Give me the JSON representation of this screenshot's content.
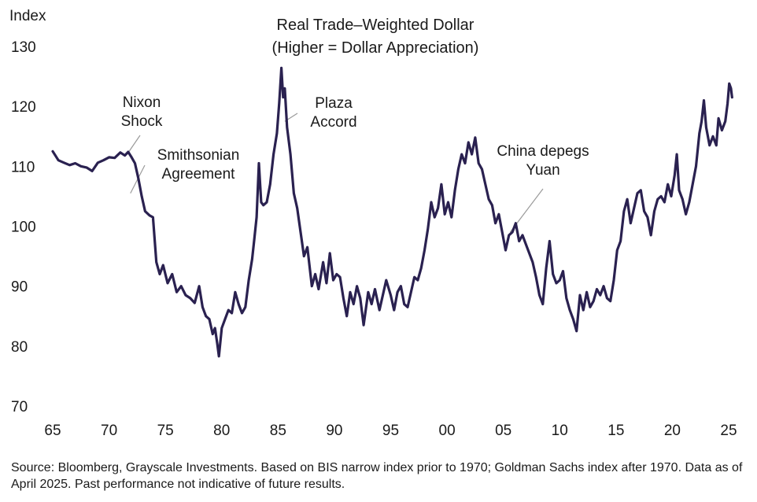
{
  "chart_data": {
    "type": "line",
    "title": "Real Trade–Weighted Dollar",
    "subtitle": "(Higher = Dollar Appreciation)",
    "ylabel": "Index",
    "xlabel": "",
    "ylim": [
      70,
      130
    ],
    "xlim": [
      1965,
      2025.3
    ],
    "yticks": [
      70,
      80,
      90,
      100,
      110,
      120,
      130
    ],
    "xticks": [
      {
        "value": 1965,
        "label": "65"
      },
      {
        "value": 1970,
        "label": "70"
      },
      {
        "value": 1975,
        "label": "75"
      },
      {
        "value": 1980,
        "label": "80"
      },
      {
        "value": 1985,
        "label": "85"
      },
      {
        "value": 1990,
        "label": "90"
      },
      {
        "value": 1995,
        "label": "95"
      },
      {
        "value": 2000,
        "label": "00"
      },
      {
        "value": 2005,
        "label": "05"
      },
      {
        "value": 2010,
        "label": "10"
      },
      {
        "value": 2015,
        "label": "15"
      },
      {
        "value": 2020,
        "label": "20"
      },
      {
        "value": 2025,
        "label": "25"
      }
    ],
    "grid": false,
    "line_color": "#2a2150",
    "series": [
      {
        "points": [
          [
            1965.0,
            112.5
          ],
          [
            1965.5,
            111.0
          ],
          [
            1966.0,
            110.6
          ],
          [
            1966.5,
            110.2
          ],
          [
            1967.0,
            110.5
          ],
          [
            1967.5,
            110.0
          ],
          [
            1968.0,
            109.8
          ],
          [
            1968.5,
            109.2
          ],
          [
            1969.0,
            110.6
          ],
          [
            1969.5,
            111.0
          ],
          [
            1970.0,
            111.5
          ],
          [
            1970.5,
            111.4
          ],
          [
            1971.0,
            112.3
          ],
          [
            1971.4,
            111.8
          ],
          [
            1971.7,
            112.4
          ],
          [
            1972.0,
            111.5
          ],
          [
            1972.3,
            110.5
          ],
          [
            1972.6,
            108.0
          ],
          [
            1972.9,
            105.0
          ],
          [
            1973.2,
            102.5
          ],
          [
            1973.6,
            101.8
          ],
          [
            1973.9,
            101.5
          ],
          [
            1974.2,
            94.0
          ],
          [
            1974.5,
            92.0
          ],
          [
            1974.8,
            93.5
          ],
          [
            1975.2,
            90.5
          ],
          [
            1975.6,
            92.0
          ],
          [
            1976.0,
            89.0
          ],
          [
            1976.4,
            90.0
          ],
          [
            1976.8,
            88.5
          ],
          [
            1977.2,
            88.0
          ],
          [
            1977.6,
            87.2
          ],
          [
            1978.0,
            90.0
          ],
          [
            1978.3,
            86.5
          ],
          [
            1978.6,
            85.0
          ],
          [
            1978.9,
            84.5
          ],
          [
            1979.2,
            82.0
          ],
          [
            1979.4,
            83.0
          ],
          [
            1979.6,
            80.5
          ],
          [
            1979.75,
            78.3
          ],
          [
            1980.0,
            83.0
          ],
          [
            1980.3,
            84.5
          ],
          [
            1980.6,
            86.0
          ],
          [
            1980.9,
            85.5
          ],
          [
            1981.2,
            89.0
          ],
          [
            1981.5,
            87.0
          ],
          [
            1981.8,
            85.5
          ],
          [
            1982.1,
            86.5
          ],
          [
            1982.4,
            91.0
          ],
          [
            1982.7,
            94.5
          ],
          [
            1982.9,
            98.0
          ],
          [
            1983.1,
            101.5
          ],
          [
            1983.3,
            110.5
          ],
          [
            1983.5,
            104.0
          ],
          [
            1983.7,
            103.5
          ],
          [
            1984.0,
            104.0
          ],
          [
            1984.3,
            107.0
          ],
          [
            1984.6,
            112.0
          ],
          [
            1984.9,
            115.5
          ],
          [
            1985.1,
            120.5
          ],
          [
            1985.3,
            126.4
          ],
          [
            1985.45,
            121.5
          ],
          [
            1985.6,
            123.0
          ],
          [
            1985.8,
            116.5
          ],
          [
            1986.1,
            112.0
          ],
          [
            1986.4,
            105.5
          ],
          [
            1986.7,
            103.0
          ],
          [
            1987.0,
            99.0
          ],
          [
            1987.3,
            95.0
          ],
          [
            1987.6,
            96.5
          ],
          [
            1988.0,
            90.0
          ],
          [
            1988.3,
            92.0
          ],
          [
            1988.6,
            89.5
          ],
          [
            1989.0,
            94.0
          ],
          [
            1989.3,
            90.5
          ],
          [
            1989.6,
            95.5
          ],
          [
            1989.9,
            91.0
          ],
          [
            1990.2,
            92.0
          ],
          [
            1990.5,
            91.5
          ],
          [
            1990.8,
            88.0
          ],
          [
            1991.1,
            85.0
          ],
          [
            1991.4,
            89.0
          ],
          [
            1991.7,
            87.0
          ],
          [
            1992.0,
            90.0
          ],
          [
            1992.3,
            88.0
          ],
          [
            1992.6,
            83.5
          ],
          [
            1993.0,
            89.0
          ],
          [
            1993.3,
            87.0
          ],
          [
            1993.6,
            89.5
          ],
          [
            1994.0,
            86.0
          ],
          [
            1994.3,
            88.5
          ],
          [
            1994.6,
            91.0
          ],
          [
            1995.0,
            88.5
          ],
          [
            1995.3,
            86.0
          ],
          [
            1995.6,
            89.0
          ],
          [
            1995.9,
            90.0
          ],
          [
            1996.2,
            87.0
          ],
          [
            1996.5,
            86.5
          ],
          [
            1996.8,
            89.0
          ],
          [
            1997.1,
            91.5
          ],
          [
            1997.4,
            91.0
          ],
          [
            1997.7,
            93.0
          ],
          [
            1998.0,
            96.0
          ],
          [
            1998.3,
            99.5
          ],
          [
            1998.6,
            104.0
          ],
          [
            1998.9,
            101.5
          ],
          [
            1999.2,
            103.0
          ],
          [
            1999.5,
            107.0
          ],
          [
            1999.8,
            102.0
          ],
          [
            2000.1,
            104.0
          ],
          [
            2000.4,
            101.5
          ],
          [
            2000.7,
            106.0
          ],
          [
            2001.0,
            109.5
          ],
          [
            2001.3,
            112.0
          ],
          [
            2001.6,
            110.5
          ],
          [
            2001.9,
            114.0
          ],
          [
            2002.2,
            112.0
          ],
          [
            2002.5,
            114.8
          ],
          [
            2002.8,
            110.5
          ],
          [
            2003.1,
            109.5
          ],
          [
            2003.4,
            107.0
          ],
          [
            2003.7,
            104.5
          ],
          [
            2004.0,
            103.5
          ],
          [
            2004.3,
            100.5
          ],
          [
            2004.6,
            102.0
          ],
          [
            2004.9,
            99.0
          ],
          [
            2005.2,
            96.0
          ],
          [
            2005.5,
            98.5
          ],
          [
            2005.8,
            99.0
          ],
          [
            2006.1,
            100.5
          ],
          [
            2006.4,
            97.5
          ],
          [
            2006.7,
            98.5
          ],
          [
            2007.0,
            97.0
          ],
          [
            2007.3,
            95.5
          ],
          [
            2007.6,
            94.0
          ],
          [
            2007.9,
            91.5
          ],
          [
            2008.2,
            88.5
          ],
          [
            2008.5,
            87.0
          ],
          [
            2008.8,
            93.0
          ],
          [
            2009.1,
            97.5
          ],
          [
            2009.4,
            92.0
          ],
          [
            2009.7,
            90.5
          ],
          [
            2010.0,
            91.0
          ],
          [
            2010.3,
            92.5
          ],
          [
            2010.6,
            88.0
          ],
          [
            2010.9,
            86.0
          ],
          [
            2011.2,
            84.5
          ],
          [
            2011.5,
            82.5
          ],
          [
            2011.8,
            88.5
          ],
          [
            2012.1,
            86.0
          ],
          [
            2012.4,
            89.0
          ],
          [
            2012.7,
            86.5
          ],
          [
            2013.0,
            87.5
          ],
          [
            2013.3,
            89.5
          ],
          [
            2013.6,
            88.5
          ],
          [
            2013.9,
            90.0
          ],
          [
            2014.2,
            88.0
          ],
          [
            2014.5,
            87.5
          ],
          [
            2014.8,
            91.0
          ],
          [
            2015.1,
            96.0
          ],
          [
            2015.4,
            97.5
          ],
          [
            2015.7,
            102.5
          ],
          [
            2016.0,
            104.5
          ],
          [
            2016.3,
            100.5
          ],
          [
            2016.6,
            103.0
          ],
          [
            2016.9,
            105.5
          ],
          [
            2017.2,
            106.0
          ],
          [
            2017.5,
            102.5
          ],
          [
            2017.8,
            101.5
          ],
          [
            2018.1,
            98.5
          ],
          [
            2018.4,
            102.5
          ],
          [
            2018.7,
            104.5
          ],
          [
            2019.0,
            105.0
          ],
          [
            2019.3,
            104.0
          ],
          [
            2019.6,
            107.0
          ],
          [
            2019.9,
            105.0
          ],
          [
            2020.2,
            108.5
          ],
          [
            2020.4,
            112.0
          ],
          [
            2020.6,
            106.0
          ],
          [
            2020.9,
            104.5
          ],
          [
            2021.2,
            102.0
          ],
          [
            2021.5,
            104.0
          ],
          [
            2021.8,
            107.0
          ],
          [
            2022.1,
            110.0
          ],
          [
            2022.4,
            115.5
          ],
          [
            2022.6,
            117.5
          ],
          [
            2022.8,
            121.0
          ],
          [
            2023.0,
            116.5
          ],
          [
            2023.3,
            113.5
          ],
          [
            2023.6,
            115.0
          ],
          [
            2023.9,
            113.5
          ],
          [
            2024.1,
            118.0
          ],
          [
            2024.4,
            116.0
          ],
          [
            2024.7,
            117.5
          ],
          [
            2024.9,
            120.5
          ],
          [
            2025.05,
            123.8
          ],
          [
            2025.2,
            123.0
          ],
          [
            2025.3,
            121.5
          ]
        ]
      }
    ],
    "annotations": [
      {
        "lines": [
          "Nixon",
          "Shock"
        ],
        "x": 1971.6,
        "y": 112.0
      },
      {
        "lines": [
          "Smithsonian",
          "Agreement"
        ],
        "x": 1971.9,
        "y": 105.5
      },
      {
        "lines": [
          "Plaza",
          "Accord"
        ],
        "x": 1985.6,
        "y": 117.5
      },
      {
        "lines": [
          "China depegs",
          "Yuan"
        ],
        "x": 2005.6,
        "y": 99.0
      }
    ]
  },
  "source_text": "Source: Bloomberg, Grayscale Investments. Based on BIS narrow index prior to 1970; Goldman Sachs index after 1970. Data as of April 2025. Past performance not indicative of future results."
}
